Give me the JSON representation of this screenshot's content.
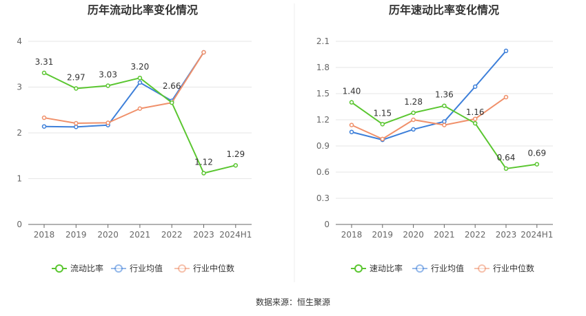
{
  "source_label": "数据来源：恒生聚源",
  "colors": {
    "primary": "#5ac630",
    "industry_avg": "#3d7fd9",
    "industry_median": "#f0906a",
    "grid": "#e6e6e6",
    "axis": "#666666"
  },
  "chart_data": [
    {
      "type": "line",
      "title": "历年流动比率变化情况",
      "categories": [
        "2018",
        "2019",
        "2020",
        "2021",
        "2022",
        "2023",
        "2024H1"
      ],
      "ylim": [
        0,
        4
      ],
      "yticks": [
        "0",
        "1",
        "2",
        "3",
        "4"
      ],
      "series": [
        {
          "name": "流动比率",
          "values": [
            3.31,
            2.97,
            3.03,
            3.2,
            2.66,
            1.12,
            1.29
          ],
          "labels": [
            "3.31",
            "2.97",
            "3.03",
            "3.20",
            "2.66",
            "1.12",
            "1.29"
          ],
          "color": "#5ac630"
        },
        {
          "name": "行业均值",
          "values": [
            2.14,
            2.13,
            2.17,
            3.1,
            2.7,
            3.76,
            null
          ],
          "color": "#3d7fd9"
        },
        {
          "name": "行业中位数",
          "values": [
            2.33,
            2.21,
            2.22,
            2.53,
            2.66,
            3.76,
            null
          ],
          "color": "#f0906a"
        }
      ],
      "legend_position": "bottom"
    },
    {
      "type": "line",
      "title": "历年速动比率变化情况",
      "categories": [
        "2018",
        "2019",
        "2020",
        "2021",
        "2022",
        "2023",
        "2024H1"
      ],
      "ylim": [
        0,
        2.1
      ],
      "yticks": [
        "0",
        "0.3",
        "0.6",
        "0.9",
        "1.2",
        "1.5",
        "1.8",
        "2.1"
      ],
      "series": [
        {
          "name": "速动比率",
          "values": [
            1.4,
            1.15,
            1.28,
            1.36,
            1.16,
            0.64,
            0.69
          ],
          "labels": [
            "1.40",
            "1.15",
            "1.28",
            "1.36",
            "1.16",
            "0.64",
            "0.69"
          ],
          "color": "#5ac630"
        },
        {
          "name": "行业均值",
          "values": [
            1.06,
            0.97,
            1.09,
            1.18,
            1.58,
            1.99,
            null
          ],
          "color": "#3d7fd9"
        },
        {
          "name": "行业中位数",
          "values": [
            1.14,
            0.98,
            1.2,
            1.14,
            1.21,
            1.46,
            null
          ],
          "color": "#f0906a"
        }
      ],
      "legend_position": "bottom"
    }
  ]
}
